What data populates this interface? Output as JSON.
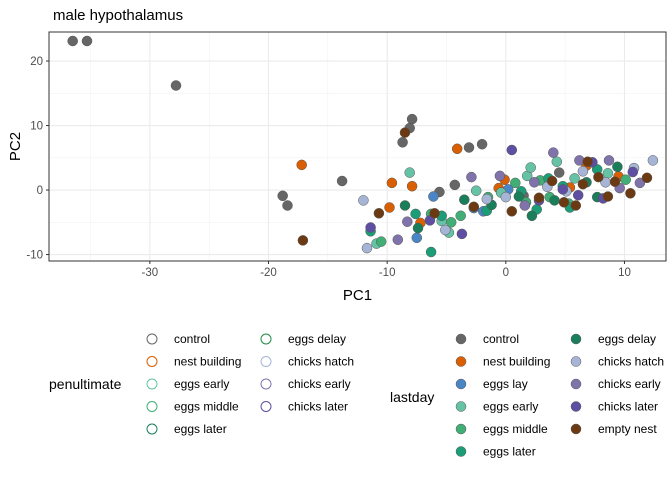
{
  "chart_data": {
    "type": "scatter",
    "title": "male hypothalamus",
    "xlabel": "PC1",
    "ylabel": "PC2",
    "xlim": [
      -38.5,
      13.5
    ],
    "ylim": [
      -11.0,
      24.5
    ],
    "xticks": [
      -30,
      -20,
      -10,
      0,
      10
    ],
    "yticks": [
      -10,
      0,
      10,
      20
    ],
    "grid": true,
    "legends": [
      {
        "title": "penultimate",
        "encoding": "outline color",
        "entries": [
          {
            "label": "control",
            "color": "#666666"
          },
          {
            "label": "nest building",
            "color": "#d95f02"
          },
          {
            "label": "eggs early",
            "color": "#66c2a5"
          },
          {
            "label": "eggs middle",
            "color": "#41ae76"
          },
          {
            "label": "eggs later",
            "color": "#1b7e5a"
          },
          {
            "label": "eggs delay",
            "color": "#238b45"
          },
          {
            "label": "chicks hatch",
            "color": "#a6b5d6"
          },
          {
            "label": "chicks early",
            "color": "#8073ac"
          },
          {
            "label": "chicks later",
            "color": "#5e4fa2"
          }
        ]
      },
      {
        "title": "lastday",
        "encoding": "fill color",
        "entries": [
          {
            "label": "control",
            "color": "#666666"
          },
          {
            "label": "nest building",
            "color": "#d95f02"
          },
          {
            "label": "eggs lay",
            "color": "#4a86c5"
          },
          {
            "label": "eggs early",
            "color": "#66c2a5"
          },
          {
            "label": "eggs middle",
            "color": "#41ae76"
          },
          {
            "label": "eggs later",
            "color": "#1b9e77"
          },
          {
            "label": "eggs delay",
            "color": "#1b7e5a"
          },
          {
            "label": "chicks hatch",
            "color": "#a6b5d6"
          },
          {
            "label": "chicks early",
            "color": "#8073ac"
          },
          {
            "label": "chicks later",
            "color": "#5e4fa2"
          },
          {
            "label": "empty nest",
            "color": "#6b3a12"
          }
        ]
      }
    ],
    "series": [
      {
        "name": "control",
        "color": "#666666",
        "points": [
          [
            -36.5,
            23.1
          ],
          [
            -35.3,
            23.1
          ],
          [
            -27.8,
            16.2
          ],
          [
            -13.8,
            1.4
          ],
          [
            -18.8,
            -0.9
          ],
          [
            -18.4,
            -2.4
          ],
          [
            -8.7,
            7.4
          ],
          [
            -7.9,
            11.0
          ],
          [
            -8.1,
            9.6
          ],
          [
            -5.6,
            -0.3
          ],
          [
            -3.1,
            6.6
          ],
          [
            -2.0,
            7.1
          ],
          [
            -4.3,
            0.8
          ],
          [
            1.5,
            -0.9
          ],
          [
            4.5,
            2.7
          ]
        ]
      },
      {
        "name": "nest building",
        "color": "#d95f02",
        "points": [
          [
            -4.1,
            6.4
          ],
          [
            -9.8,
            -2.7
          ],
          [
            -9.6,
            1.1
          ],
          [
            -7.9,
            0.6
          ],
          [
            -7.2,
            -5.1
          ],
          [
            -0.6,
            0.3
          ],
          [
            -0.1,
            1.6
          ],
          [
            5.4,
            0.4
          ],
          [
            6.8,
            3.8
          ],
          [
            9.5,
            2.1
          ],
          [
            -17.2,
            3.9
          ]
        ]
      },
      {
        "name": "eggs lay",
        "color": "#4a86c5",
        "points": [
          [
            -6.1,
            -1.0
          ],
          [
            -2.7,
            -2.8
          ],
          [
            -1.9,
            -3.3
          ],
          [
            0.2,
            0.1
          ],
          [
            -7.5,
            -7.4
          ]
        ]
      },
      {
        "name": "eggs early",
        "color": "#66c2a5",
        "points": [
          [
            -10.9,
            -8.3
          ],
          [
            -8.1,
            2.7
          ],
          [
            -5.4,
            -4.8
          ],
          [
            -4.8,
            -6.6
          ],
          [
            -2.5,
            -0.1
          ],
          [
            1.8,
            2.2
          ],
          [
            2.1,
            3.5
          ],
          [
            4.3,
            4.4
          ],
          [
            5.8,
            1.8
          ],
          [
            8.6,
            2.6
          ],
          [
            -0.4,
            -0.4
          ]
        ]
      },
      {
        "name": "eggs middle",
        "color": "#41ae76",
        "points": [
          [
            -10.5,
            -8.0
          ],
          [
            -6.3,
            -3.7
          ],
          [
            -4.6,
            -5.0
          ],
          [
            -3.8,
            -4.0
          ],
          [
            -1.5,
            -1.1
          ],
          [
            0.8,
            1.1
          ],
          [
            1.7,
            -1.9
          ],
          [
            2.9,
            1.5
          ],
          [
            3.7,
            -1.1
          ],
          [
            5.3,
            -2.1
          ],
          [
            10.1,
            1.6
          ]
        ]
      },
      {
        "name": "eggs later",
        "color": "#1b9e77",
        "points": [
          [
            -11.4,
            -6.4
          ],
          [
            -7.6,
            -3.7
          ],
          [
            -6.3,
            -9.6
          ],
          [
            -5.4,
            -4.0
          ],
          [
            -1.6,
            -3.2
          ],
          [
            1.3,
            -0.2
          ],
          [
            2.6,
            -3.0
          ],
          [
            3.6,
            1.8
          ],
          [
            4.8,
            0.6
          ],
          [
            5.4,
            -2.7
          ],
          [
            7.7,
            3.2
          ]
        ]
      },
      {
        "name": "eggs delay",
        "color": "#1b7e5a",
        "points": [
          [
            -8.5,
            -2.4
          ],
          [
            -7.4,
            -5.9
          ],
          [
            -3.5,
            -1.5
          ],
          [
            -1.2,
            -2.3
          ],
          [
            1.1,
            -1.0
          ],
          [
            2.2,
            -4.0
          ],
          [
            4.1,
            -1.6
          ],
          [
            6.8,
            1.2
          ],
          [
            7.7,
            -1.1
          ],
          [
            9.4,
            3.6
          ]
        ]
      },
      {
        "name": "chicks hatch",
        "color": "#a6b5d6",
        "points": [
          [
            -12.0,
            -1.6
          ],
          [
            -11.7,
            -9.0
          ],
          [
            -5.1,
            -6.2
          ],
          [
            -1.6,
            -1.4
          ],
          [
            0.0,
            -1.1
          ],
          [
            3.5,
            0.5
          ],
          [
            5.1,
            -0.2
          ],
          [
            6.5,
            2.9
          ],
          [
            8.4,
            1.2
          ],
          [
            10.8,
            3.4
          ],
          [
            12.4,
            4.6
          ]
        ]
      },
      {
        "name": "chicks early",
        "color": "#8073ac",
        "points": [
          [
            -9.1,
            -7.7
          ],
          [
            -8.3,
            -4.9
          ],
          [
            -2.9,
            2.0
          ],
          [
            -0.5,
            2.2
          ],
          [
            1.6,
            -2.4
          ],
          [
            2.4,
            1.2
          ],
          [
            4.0,
            5.8
          ],
          [
            6.2,
            4.6
          ],
          [
            8.7,
            4.6
          ],
          [
            9.6,
            0.3
          ],
          [
            11.3,
            1.1
          ]
        ]
      },
      {
        "name": "chicks later",
        "color": "#5e4fa2",
        "points": [
          [
            -11.4,
            -5.8
          ],
          [
            -6.4,
            -4.7
          ],
          [
            -3.7,
            -6.8
          ],
          [
            0.5,
            6.2
          ],
          [
            2.8,
            -1.6
          ],
          [
            4.8,
            0.1
          ],
          [
            6.1,
            -0.8
          ],
          [
            7.3,
            4.3
          ],
          [
            8.2,
            -1.3
          ],
          [
            10.7,
            2.8
          ]
        ]
      },
      {
        "name": "empty nest",
        "color": "#6b3a12",
        "points": [
          [
            -17.1,
            -7.8
          ],
          [
            -10.7,
            -3.6
          ],
          [
            -8.5,
            8.9
          ],
          [
            -6.0,
            -3.6
          ],
          [
            -2.7,
            -2.6
          ],
          [
            0.5,
            -3.3
          ],
          [
            2.8,
            -1.2
          ],
          [
            3.9,
            1.4
          ],
          [
            4.9,
            -1.9
          ],
          [
            5.9,
            -2.4
          ],
          [
            6.5,
            0.9
          ],
          [
            6.9,
            4.4
          ],
          [
            7.8,
            2.0
          ],
          [
            8.6,
            -1.0
          ],
          [
            9.2,
            1.3
          ],
          [
            10.5,
            -0.5
          ],
          [
            11.9,
            1.9
          ]
        ]
      }
    ]
  }
}
